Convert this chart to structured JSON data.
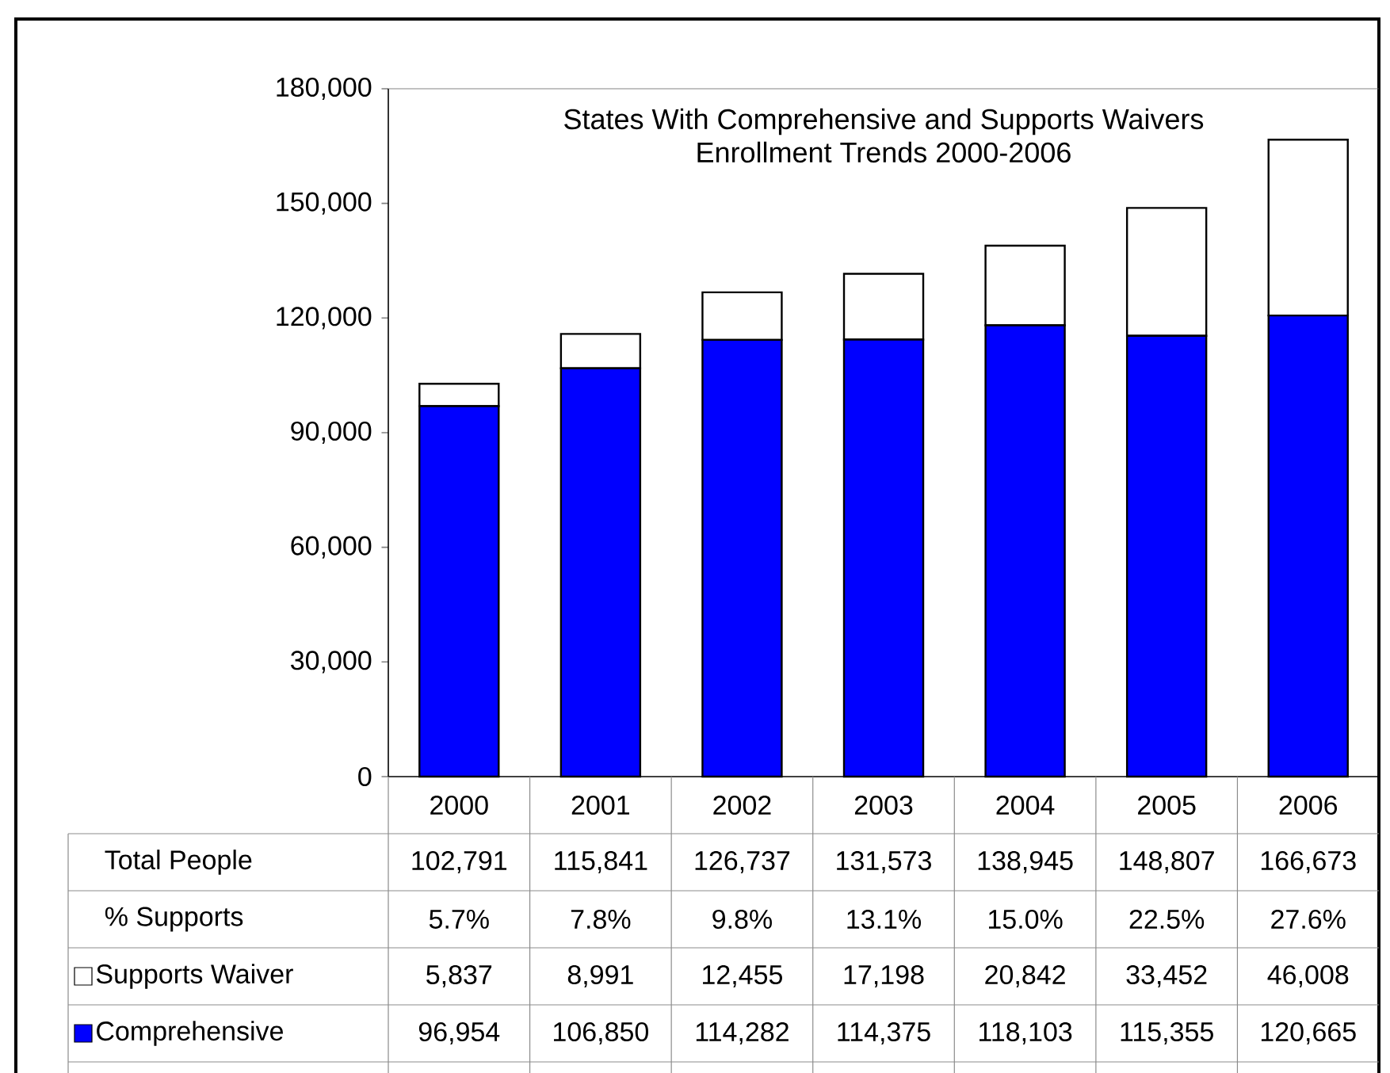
{
  "chart_data": {
    "type": "bar",
    "stacked": true,
    "title": "States With Comprehensive and Supports Waivers",
    "subtitle": "Enrollment Trends 2000-2006",
    "categories": [
      "2000",
      "2001",
      "2002",
      "2003",
      "2004",
      "2005",
      "2006"
    ],
    "series": [
      {
        "name": "Comprehensive",
        "color": "#0000ff",
        "values": [
          96954,
          106850,
          114282,
          114375,
          118103,
          115355,
          120665
        ],
        "value_labels": [
          "96,954",
          "106,850",
          "114,282",
          "114,375",
          "118,103",
          "115,355",
          "120,665"
        ]
      },
      {
        "name": "Supports Waiver",
        "color": "#ffffff",
        "values": [
          5837,
          8991,
          12455,
          17198,
          20842,
          33452,
          46008
        ],
        "value_labels": [
          "5,837",
          "8,991",
          "12,455",
          "17,198",
          "20,842",
          "33,452",
          "46,008"
        ]
      }
    ],
    "totals": [
      "102,791",
      "115,841",
      "126,737",
      "131,573",
      "138,945",
      "148,807",
      "166,673"
    ],
    "annotations": [
      "Total People",
      "% Supports",
      "5.7%",
      "7.8%",
      "9.8%",
      "13.1%",
      "15.0%",
      "22.5%",
      "27.6%"
    ],
    "ylim": [
      0,
      180000
    ],
    "yticks": [
      0,
      {
        "value": 30000,
        "label": "30,000"
      },
      {
        "value": 60000,
        "label": "60,000"
      },
      {
        "value": 90000,
        "label": "90,000"
      },
      {
        "value": 120000,
        "label": "120,000"
      },
      {
        "value": 150000,
        "label": "150,000"
      },
      {
        "value": 180000,
        "label": "180,000"
      }
    ],
    "grid": false,
    "legend": "bottom"
  }
}
